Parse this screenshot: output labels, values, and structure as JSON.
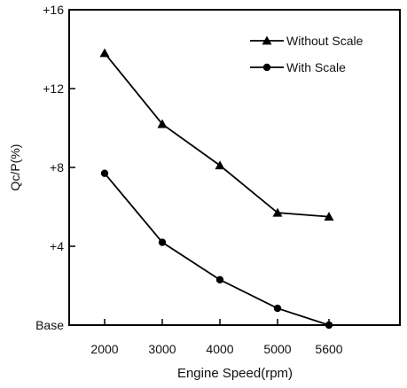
{
  "chart_data": {
    "type": "line",
    "xlabel": "Engine Speed(rpm)",
    "ylabel": "Qc/P(%)",
    "categories": [
      "2000",
      "3000",
      "4000",
      "5000",
      "5600"
    ],
    "y_tick_labels": [
      "Base",
      "+4",
      "+8",
      "+12",
      "+16"
    ],
    "y_tick_values": [
      0,
      4,
      8,
      12,
      16
    ],
    "ylim": [
      0,
      16
    ],
    "grid": false,
    "legend_position": "top-right",
    "series": [
      {
        "name": "Without Scale",
        "marker": "triangle",
        "color": "#000000",
        "values": [
          13.8,
          10.2,
          8.1,
          5.7,
          5.5
        ]
      },
      {
        "name": "With Scale",
        "marker": "circle",
        "color": "#000000",
        "values": [
          7.7,
          4.2,
          2.3,
          0.85,
          0.0
        ]
      }
    ]
  }
}
